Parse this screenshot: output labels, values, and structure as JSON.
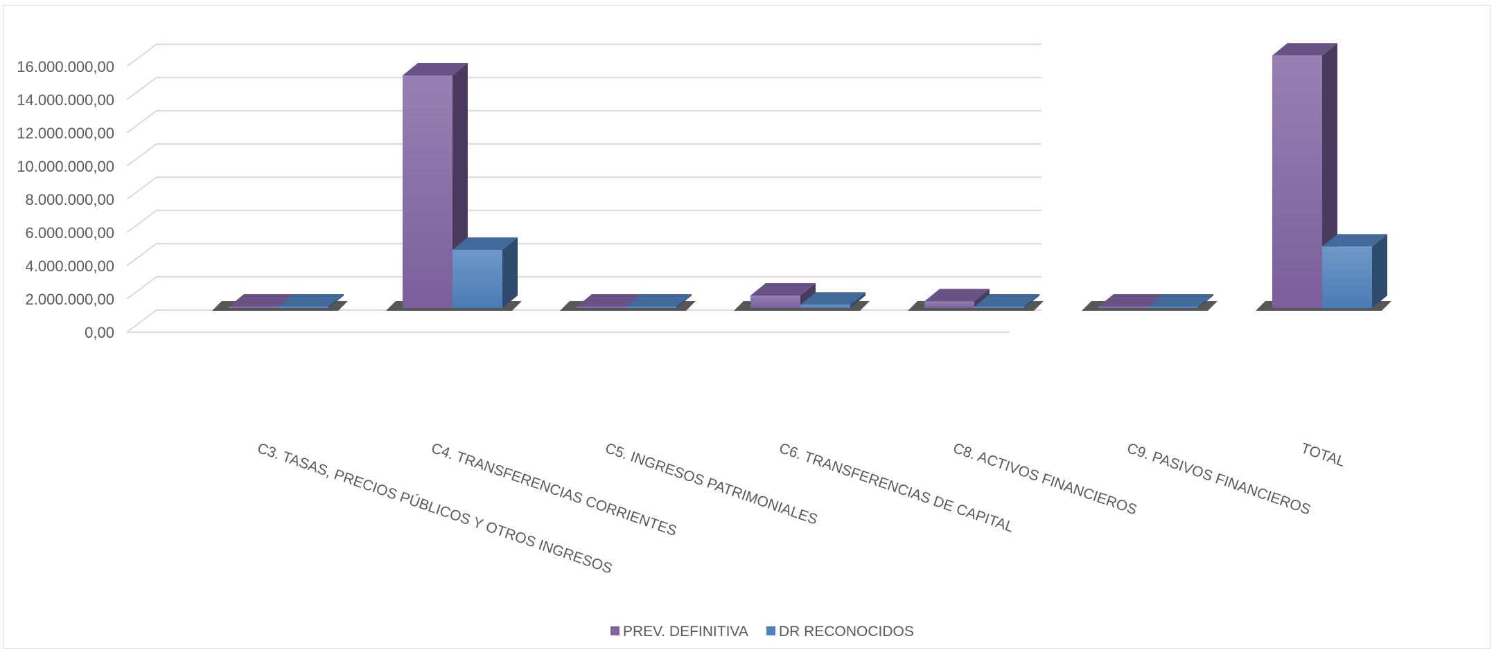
{
  "chart_data": {
    "type": "bar",
    "categories": [
      "C3. TASAS, PRECIOS PÚBLICOS Y OTROS INGRESOS",
      "C4. TRANSFERENCIAS CORRIENTES",
      "C5. INGRESOS PATRIMONIALES",
      "C6. TRANSFERENCIAS DE CAPITAL",
      "C8. ACTIVOS FINANCIEROS",
      "C9. PASIVOS FINANCIEROS",
      "TOTAL"
    ],
    "series": [
      {
        "name": "PREV. DEFINITIVA",
        "color": "#8064a2",
        "values": [
          0,
          14000000,
          0,
          750000,
          400000,
          0,
          15200000
        ]
      },
      {
        "name": "DR RECONOCIDOS",
        "color": "#4f81bd",
        "values": [
          0,
          3500000,
          0,
          200000,
          30000,
          0,
          3700000
        ]
      }
    ],
    "y_ticks": [
      "0,00",
      "2.000.000,00",
      "4.000.000,00",
      "6.000.000,00",
      "8.000.000,00",
      "10.000.000,00",
      "12.000.000,00",
      "14.000.000,00",
      "16.000.000,00"
    ],
    "ylim": [
      0,
      16000000
    ],
    "grid": true,
    "legend_position": "bottom",
    "style": "3d-clustered-column"
  }
}
